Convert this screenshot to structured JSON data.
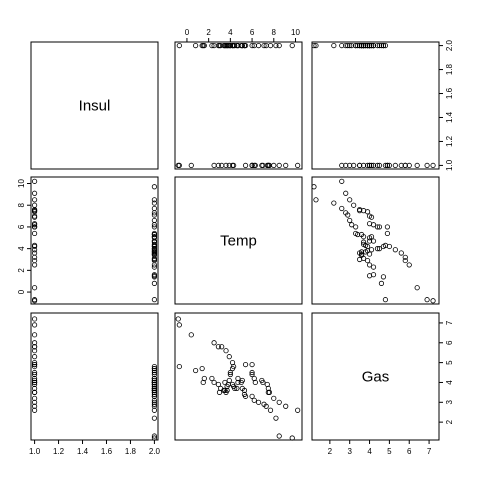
{
  "chart_data": {
    "type": "scatter",
    "variables": [
      "Insul",
      "Temp",
      "Gas"
    ],
    "axes": {
      "Insul": {
        "ticks": [
          1.0,
          1.2,
          1.4,
          1.6,
          1.8,
          2.0
        ],
        "tick_labels": [
          "1.0",
          "1.2",
          "1.4",
          "1.6",
          "1.8",
          "2.0"
        ],
        "range": [
          0.97,
          2.03
        ]
      },
      "Temp": {
        "ticks": [
          0,
          2,
          4,
          6,
          8,
          10
        ],
        "tick_labels": [
          "0",
          "2",
          "4",
          "6",
          "8",
          "10"
        ],
        "range": [
          -1.1,
          10.6
        ]
      },
      "Gas": {
        "ticks": [
          2,
          3,
          4,
          5,
          6,
          7
        ],
        "tick_labels": [
          "2",
          "3",
          "4",
          "5",
          "6",
          "7"
        ],
        "range": [
          1.1,
          7.5
        ]
      }
    },
    "data": {
      "Insul": [
        1,
        1,
        1,
        1,
        1,
        1,
        1,
        1,
        1,
        1,
        1,
        1,
        1,
        1,
        1,
        1,
        1,
        1,
        1,
        1,
        1,
        1,
        1,
        1,
        1,
        1,
        2,
        2,
        2,
        2,
        2,
        2,
        2,
        2,
        2,
        2,
        2,
        2,
        2,
        2,
        2,
        2,
        2,
        2,
        2,
        2,
        2,
        2,
        2,
        2,
        2,
        2,
        2,
        2,
        2,
        2,
        2,
        2,
        2,
        2,
        2,
        2,
        2,
        2,
        2,
        2,
        2,
        2
      ],
      "Temp": [
        -0.8,
        -0.7,
        0.4,
        2.5,
        2.9,
        3.2,
        3.6,
        3.9,
        4.2,
        4.3,
        5.4,
        6.0,
        6.0,
        6.0,
        6.2,
        6.3,
        6.9,
        7.0,
        7.4,
        7.5,
        7.5,
        7.6,
        8.0,
        8.5,
        9.1,
        10.2,
        -0.7,
        0.8,
        1.4,
        1.5,
        1.6,
        2.3,
        2.5,
        2.9,
        3.0,
        3.1,
        3.4,
        3.5,
        3.5,
        3.6,
        3.7,
        3.7,
        3.8,
        3.9,
        4.0,
        4.0,
        4.2,
        4.2,
        4.3,
        4.4,
        4.6,
        4.7,
        4.7,
        5.0,
        5.1,
        5.1,
        5.3,
        5.3,
        5.4,
        6.0,
        6.2,
        6.6,
        7.1,
        7.3,
        7.7,
        8.2,
        8.5,
        9.7
      ],
      "Gas": [
        7.2,
        6.9,
        6.4,
        6.0,
        5.8,
        5.8,
        5.6,
        5.3,
        5.0,
        4.8,
        4.9,
        4.9,
        4.5,
        4.4,
        4.2,
        4.0,
        4.1,
        4.0,
        3.9,
        3.5,
        3.7,
        3.5,
        3.2,
        3.0,
        2.8,
        2.6,
        4.8,
        4.6,
        4.7,
        4.0,
        4.2,
        4.2,
        4.0,
        3.9,
        3.5,
        3.7,
        3.6,
        3.6,
        4.0,
        3.5,
        3.8,
        3.6,
        3.9,
        4.1,
        4.4,
        4.5,
        4.7,
        3.9,
        3.8,
        3.7,
        3.7,
        4.2,
        4.0,
        4.0,
        4.1,
        3.7,
        3.6,
        3.4,
        3.3,
        3.3,
        3.1,
        3.0,
        2.9,
        2.8,
        2.6,
        2.2,
        1.3,
        1.2
      ]
    },
    "colors": {
      "point": "#000000",
      "frame": "#000000",
      "background": "#ffffff"
    }
  }
}
